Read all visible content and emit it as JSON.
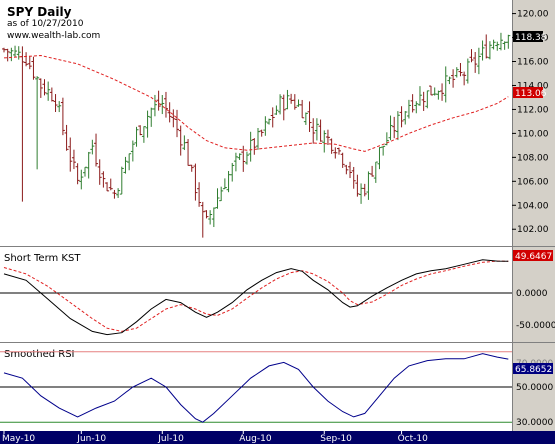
{
  "colors": {
    "background": "#ffffff",
    "axis_panel": "#d4d0c8",
    "up_bar": "#2f7d2f",
    "down_bar": "#8b1a1a",
    "moving_average": "#e02020",
    "kst_line": "#000000",
    "kst_signal": "#e02020",
    "rsi_line": "#00008b",
    "rsi_upper_band": "#e58080",
    "rsi_lower_band": "#2e8b2e",
    "rsi_mid_band": "#000000",
    "time_axis_bg": "#000066",
    "label_close": "#000000",
    "label_ma": "#d00000",
    "label_kst": "#d00000",
    "label_rsi": "#000080"
  },
  "chart_data": [
    {
      "type": "ohlc",
      "title": "SPY Daily",
      "subtitle": "as of 10/27/2010",
      "watermark": "www.wealth-lab.com",
      "ylim": [
        100.6,
        120.8
      ],
      "y_ticks": [
        "120.00",
        "118.00",
        "116.00",
        "114.00",
        "112.00",
        "110.00",
        "108.00",
        "106.00",
        "104.00",
        "102.00"
      ],
      "x_ticks": [
        "May-10",
        "Jun-10",
        "Jul-10",
        "Aug-10",
        "Sep-10",
        "Oct-10"
      ],
      "close_points": [
        [
          0,
          117.0
        ],
        [
          6,
          116.3
        ],
        [
          10,
          114.0
        ],
        [
          14,
          113.0
        ],
        [
          17,
          109.0
        ],
        [
          20,
          106.0
        ],
        [
          24,
          109.0
        ],
        [
          27,
          106.0
        ],
        [
          30,
          105.0
        ],
        [
          33,
          107.5
        ],
        [
          36,
          110.0
        ],
        [
          40,
          112.0
        ],
        [
          43,
          112.5
        ],
        [
          46,
          111.0
        ],
        [
          49,
          109.0
        ],
        [
          51,
          106.5
        ],
        [
          53,
          104.5
        ],
        [
          54,
          103.0
        ],
        [
          55,
          102.5
        ],
        [
          57,
          104.0
        ],
        [
          60,
          106.0
        ],
        [
          63,
          107.5
        ],
        [
          66,
          108.5
        ],
        [
          69,
          109.5
        ],
        [
          72,
          111.0
        ],
        [
          75,
          112.5
        ],
        [
          78,
          112.8
        ],
        [
          81,
          112.0
        ],
        [
          84,
          110.5
        ],
        [
          87,
          109.8
        ],
        [
          90,
          109.0
        ],
        [
          92,
          108.0
        ],
        [
          94,
          107.0
        ],
        [
          95,
          105.5
        ],
        [
          96,
          105.0
        ],
        [
          98,
          105.5
        ],
        [
          100,
          107.0
        ],
        [
          102,
          108.5
        ],
        [
          104,
          109.5
        ],
        [
          107,
          111.0
        ],
        [
          110,
          112.5
        ],
        [
          113,
          113.0
        ],
        [
          116,
          113.5
        ],
        [
          119,
          114.0
        ],
        [
          122,
          114.5
        ],
        [
          125,
          115.0
        ],
        [
          128,
          116.0
        ],
        [
          131,
          117.0
        ],
        [
          133,
          117.8
        ],
        [
          135,
          118.0
        ],
        [
          137,
          118.4
        ]
      ],
      "moving_average_points": [
        [
          0,
          116.3
        ],
        [
          10,
          116.5
        ],
        [
          20,
          115.8
        ],
        [
          30,
          114.5
        ],
        [
          40,
          113.0
        ],
        [
          45,
          111.8
        ],
        [
          50,
          110.5
        ],
        [
          55,
          109.4
        ],
        [
          60,
          108.8
        ],
        [
          66,
          108.6
        ],
        [
          72,
          108.8
        ],
        [
          78,
          109.0
        ],
        [
          84,
          109.2
        ],
        [
          90,
          109.1
        ],
        [
          95,
          108.7
        ],
        [
          98,
          108.5
        ],
        [
          104,
          109.2
        ],
        [
          110,
          110.0
        ],
        [
          116,
          110.7
        ],
        [
          122,
          111.3
        ],
        [
          128,
          111.8
        ],
        [
          134,
          112.5
        ],
        [
          137,
          113.06
        ]
      ],
      "last_close_label": "118.38",
      "last_ma_label": "113.06"
    },
    {
      "type": "line",
      "title": "Short Term KST",
      "ylim": [
        -75,
        72
      ],
      "y_ticks": [
        "0.0000",
        "-50.0000"
      ],
      "series": [
        {
          "values": [
            [
              0,
              30
            ],
            [
              6,
              20
            ],
            [
              12,
              -10
            ],
            [
              18,
              -40
            ],
            [
              24,
              -60
            ],
            [
              28,
              -65
            ],
            [
              32,
              -62
            ],
            [
              36,
              -45
            ],
            [
              40,
              -25
            ],
            [
              44,
              -10
            ],
            [
              48,
              -15
            ],
            [
              52,
              -30
            ],
            [
              55,
              -38
            ],
            [
              58,
              -30
            ],
            [
              62,
              -15
            ],
            [
              66,
              5
            ],
            [
              70,
              20
            ],
            [
              74,
              32
            ],
            [
              78,
              38
            ],
            [
              81,
              34
            ],
            [
              84,
              20
            ],
            [
              88,
              5
            ],
            [
              92,
              -15
            ],
            [
              94,
              -22
            ],
            [
              96,
              -20
            ],
            [
              100,
              -5
            ],
            [
              104,
              8
            ],
            [
              108,
              20
            ],
            [
              112,
              30
            ],
            [
              116,
              35
            ],
            [
              120,
              38
            ],
            [
              125,
              45
            ],
            [
              130,
              52
            ],
            [
              134,
              50
            ],
            [
              137,
              49.6467
            ]
          ]
        },
        {
          "values": [
            [
              0,
              40
            ],
            [
              6,
              30
            ],
            [
              12,
              10
            ],
            [
              18,
              -15
            ],
            [
              24,
              -40
            ],
            [
              28,
              -55
            ],
            [
              32,
              -60
            ],
            [
              36,
              -55
            ],
            [
              40,
              -40
            ],
            [
              44,
              -25
            ],
            [
              48,
              -18
            ],
            [
              52,
              -25
            ],
            [
              55,
              -33
            ],
            [
              58,
              -35
            ],
            [
              62,
              -25
            ],
            [
              66,
              -8
            ],
            [
              70,
              8
            ],
            [
              74,
              22
            ],
            [
              78,
              32
            ],
            [
              81,
              35
            ],
            [
              84,
              30
            ],
            [
              88,
              18
            ],
            [
              92,
              0
            ],
            [
              94,
              -12
            ],
            [
              96,
              -18
            ],
            [
              100,
              -14
            ],
            [
              104,
              -2
            ],
            [
              108,
              12
            ],
            [
              112,
              22
            ],
            [
              116,
              30
            ],
            [
              120,
              35
            ],
            [
              125,
              42
            ],
            [
              130,
              48
            ],
            [
              134,
              50
            ],
            [
              137,
              49.6467
            ]
          ]
        }
      ],
      "last_value_label": "49.6467"
    },
    {
      "type": "line",
      "title": "Smoothed RSI",
      "ylim": [
        25,
        75
      ],
      "reference_lines": [
        70,
        50,
        30
      ],
      "y_ticks": [
        "50.0000",
        "30.0000"
      ],
      "series": [
        {
          "values": [
            [
              0,
              58
            ],
            [
              5,
              55
            ],
            [
              10,
              45
            ],
            [
              15,
              38
            ],
            [
              20,
              33
            ],
            [
              25,
              38
            ],
            [
              30,
              42
            ],
            [
              35,
              50
            ],
            [
              40,
              55
            ],
            [
              44,
              50
            ],
            [
              48,
              40
            ],
            [
              52,
              32
            ],
            [
              54,
              30
            ],
            [
              57,
              35
            ],
            [
              62,
              45
            ],
            [
              67,
              55
            ],
            [
              72,
              62
            ],
            [
              76,
              64
            ],
            [
              80,
              60
            ],
            [
              84,
              50
            ],
            [
              88,
              42
            ],
            [
              92,
              36
            ],
            [
              95,
              33
            ],
            [
              98,
              35
            ],
            [
              102,
              45
            ],
            [
              106,
              55
            ],
            [
              110,
              62
            ],
            [
              115,
              65
            ],
            [
              120,
              66
            ],
            [
              125,
              66
            ],
            [
              130,
              69
            ],
            [
              134,
              67
            ],
            [
              137,
              65.8652
            ]
          ]
        }
      ],
      "last_value_label": "65.8652",
      "upper_hidden_label": "70.0000"
    }
  ]
}
